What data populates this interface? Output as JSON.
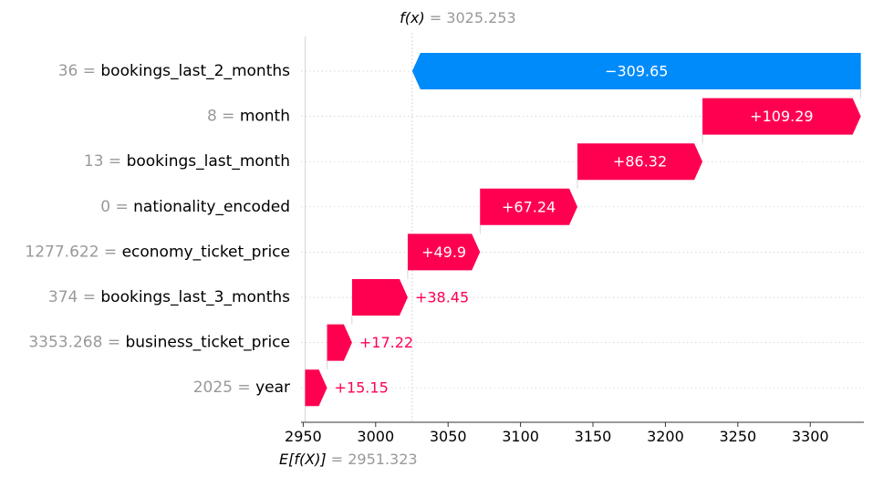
{
  "chart_data": {
    "type": "waterfall",
    "fx_label": "f(x)",
    "fx_value": "3025.253",
    "efx_label": "E[f(X)]",
    "efx_value": "2951.323",
    "base_value": 2951.323,
    "final_value": 3025.253,
    "xlim": [
      2948.5,
      3337
    ],
    "x_ticks": [
      2950,
      3000,
      3050,
      3100,
      3150,
      3200,
      3250,
      3300
    ],
    "colors": {
      "positive": "#ff0051",
      "negative": "#008bfb",
      "value_text": "#999999"
    },
    "features": [
      {
        "value": "36",
        "name": "bookings_last_2_months",
        "contribution": -309.65,
        "label": "−309.65"
      },
      {
        "value": "8",
        "name": "month",
        "contribution": 109.29,
        "label": "+109.29"
      },
      {
        "value": "13",
        "name": "bookings_last_month",
        "contribution": 86.32,
        "label": "+86.32"
      },
      {
        "value": "0",
        "name": "nationality_encoded",
        "contribution": 67.24,
        "label": "+67.24"
      },
      {
        "value": "1277.622",
        "name": "economy_ticket_price",
        "contribution": 49.9,
        "label": "+49.9"
      },
      {
        "value": "374",
        "name": "bookings_last_3_months",
        "contribution": 38.45,
        "label": "+38.45"
      },
      {
        "value": "3353.268",
        "name": "business_ticket_price",
        "contribution": 17.22,
        "label": "+17.22"
      },
      {
        "value": "2025",
        "name": "year",
        "contribution": 15.15,
        "label": "+15.15"
      }
    ]
  }
}
